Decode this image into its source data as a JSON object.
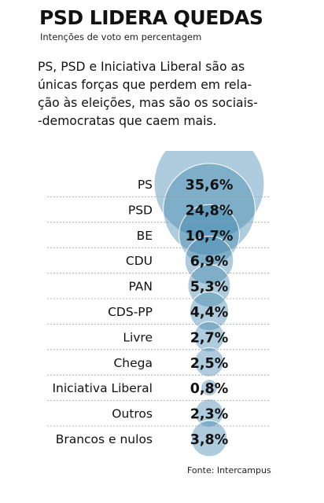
{
  "header": {
    "title": "PSD LIDERA QUEDAS",
    "subtitle": "Intenções de voto em percentagem"
  },
  "lead_text": "PS, PSD e Iniciativa Liberal são as\núnicas forças que perdem em rela-\nção às eleições, mas são os sociais-\n-democratas que caem mais.",
  "source": "Fonte: Intercampus",
  "colors": {
    "bubble_fill": "#3d86ad",
    "bubble_stroke": "#ffffff",
    "divider": "#9a9a9a"
  },
  "chart_data": {
    "type": "bubble",
    "categories": [
      "PS",
      "PSD",
      "BE",
      "CDU",
      "PAN",
      "CDS-PP",
      "Livre",
      "Chega",
      "Iniciativa Liberal",
      "Outros",
      "Brancos e nulos"
    ],
    "values": [
      35.6,
      24.8,
      10.7,
      6.9,
      5.3,
      4.4,
      2.7,
      2.5,
      0.8,
      2.3,
      3.8
    ],
    "labels": [
      "35,6%",
      "24,8%",
      "10,7%",
      "6,9%",
      "5,3%",
      "4,4%",
      "2,7%",
      "2,5%",
      "0,8%",
      "2,3%",
      "3,8%"
    ]
  }
}
